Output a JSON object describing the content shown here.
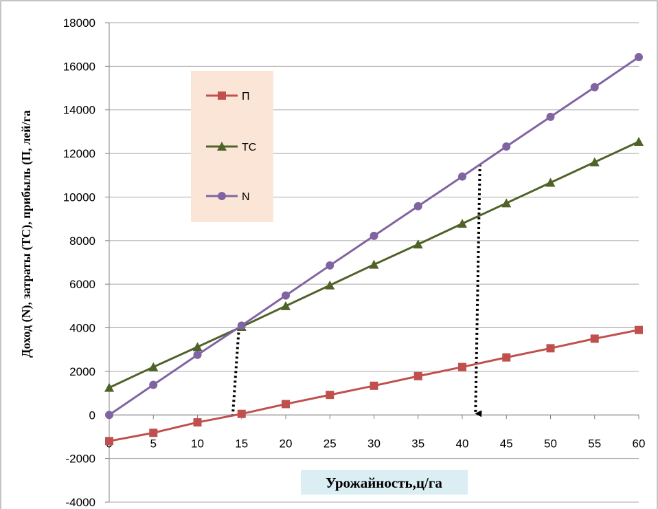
{
  "chart_data": {
    "type": "line",
    "x": [
      0,
      5,
      10,
      15,
      20,
      25,
      30,
      35,
      40,
      45,
      50,
      55,
      60
    ],
    "xlabel": "Урожайность,ц/га",
    "ylabel": "Доход (N), затраты (TC), прибыль (П, лей/га",
    "ylim": [
      -4000,
      18000
    ],
    "yticks": [
      -4000,
      -2000,
      0,
      2000,
      4000,
      6000,
      8000,
      10000,
      12000,
      14000,
      16000,
      18000
    ],
    "xticks": [
      0,
      5,
      10,
      15,
      20,
      25,
      30,
      35,
      40,
      45,
      50,
      55,
      60
    ],
    "grid": "horizontal",
    "legend": "upper-left",
    "series": [
      {
        "name": "П",
        "color": "#c0504d",
        "marker": "square",
        "values": [
          -1200,
          -820,
          -340,
          50,
          500,
          920,
          1340,
          1780,
          2200,
          2640,
          3060,
          3500,
          3900
        ]
      },
      {
        "name": "TC",
        "color": "#4f6228",
        "marker": "triangle",
        "values": [
          1250,
          2200,
          3120,
          4050,
          5000,
          5950,
          6900,
          7830,
          8780,
          9720,
          10660,
          11600,
          12540
        ]
      },
      {
        "name": "N",
        "color": "#8064a2",
        "marker": "circle",
        "values": [
          0,
          1380,
          2760,
          4100,
          5480,
          6860,
          8220,
          9580,
          10940,
          12320,
          13680,
          15040,
          16420
        ]
      }
    ],
    "annotations": [
      {
        "type": "dotted-line",
        "from": [
          14.7,
          4000
        ],
        "to": [
          14,
          0
        ]
      },
      {
        "type": "dotted-arrow",
        "from": [
          42,
          11500
        ],
        "to": [
          41.5,
          0
        ]
      }
    ]
  }
}
